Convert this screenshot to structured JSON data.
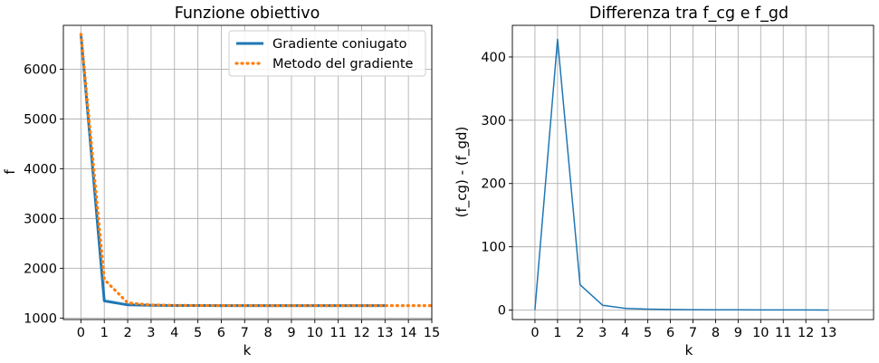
{
  "chart_data": [
    {
      "type": "line",
      "title": "Funzione obiettivo",
      "xlabel": "k",
      "ylabel": "f",
      "xlim": [
        -0.75,
        15
      ],
      "ylim": [
        970,
        6880
      ],
      "xticks": [
        0,
        1,
        2,
        3,
        4,
        5,
        6,
        7,
        8,
        9,
        10,
        11,
        12,
        13,
        14,
        15
      ],
      "yticks": [
        1000,
        2000,
        3000,
        4000,
        5000,
        6000
      ],
      "grid": true,
      "legend_position": "top-right",
      "series": [
        {
          "name": "Gradiente coniugato",
          "color": "#1f77b4",
          "style": "solid",
          "x": [
            0,
            1,
            2,
            3,
            4,
            5,
            6,
            7,
            8,
            9,
            10,
            11,
            12,
            13
          ],
          "y": [
            6700,
            1345,
            1265,
            1255,
            1252,
            1251,
            1250,
            1250,
            1250,
            1250,
            1250,
            1250,
            1250,
            1250
          ]
        },
        {
          "name": "Metodo del gradiente",
          "color": "#ff7f0e",
          "style": "dotted",
          "x": [
            0,
            1,
            2,
            3,
            4,
            5,
            6,
            7,
            8,
            9,
            10,
            11,
            12,
            13,
            14,
            15
          ],
          "y": [
            6700,
            1775,
            1305,
            1262,
            1255,
            1252,
            1251,
            1250,
            1250,
            1250,
            1250,
            1250,
            1250,
            1250,
            1250,
            1250
          ]
        }
      ]
    },
    {
      "type": "line",
      "title": "Differenza tra f_cg e f_gd",
      "xlabel": "k",
      "ylabel": "(f_cg) - (f_gd)",
      "xlim": [
        -1,
        15
      ],
      "ylim": [
        -15,
        450
      ],
      "xticks": [
        0,
        1,
        2,
        3,
        4,
        5,
        6,
        7,
        8,
        9,
        10,
        11,
        12,
        13
      ],
      "yticks": [
        0,
        100,
        200,
        300,
        400
      ],
      "grid": true,
      "series": [
        {
          "color": "#1f77b4",
          "style": "solid",
          "x": [
            0,
            1,
            2,
            3,
            4,
            5,
            6,
            7,
            8,
            9,
            10,
            11,
            12,
            13
          ],
          "y": [
            0,
            428,
            40,
            7.5,
            2.8,
            1.5,
            0.9,
            0.6,
            0.4,
            0.3,
            0.2,
            0.15,
            0.1,
            0.05
          ]
        }
      ]
    }
  ]
}
